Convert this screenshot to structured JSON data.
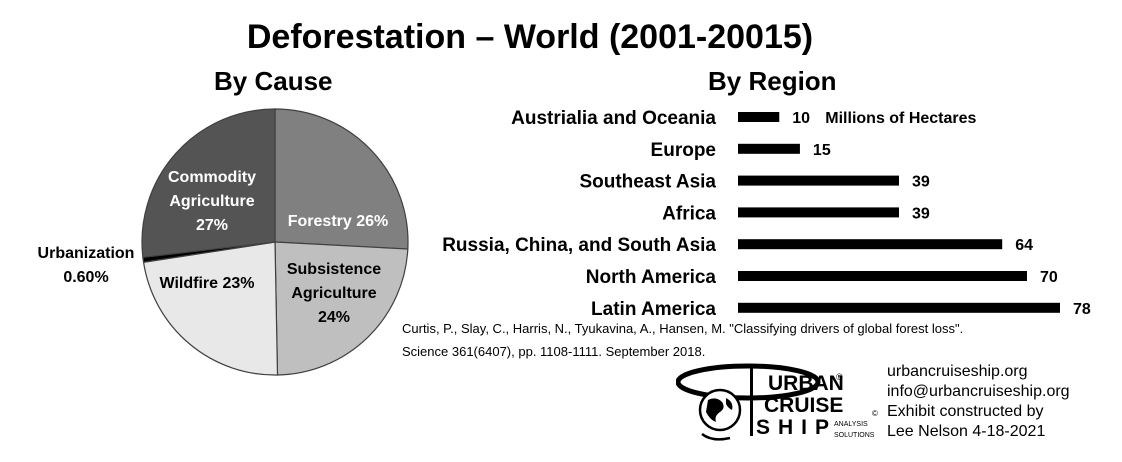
{
  "title": "Deforestation – World (2001-20015)",
  "chart_data": [
    {
      "type": "pie",
      "title": "By Cause",
      "slices": [
        {
          "name": "Forestry",
          "value": 26,
          "label": "Forestry 26%",
          "color": "#808080"
        },
        {
          "name": "Subsistence Agriculture",
          "value": 24,
          "label": "Subsistence|Agriculture|24%",
          "color": "#bfbfbf"
        },
        {
          "name": "Wildfire",
          "value": 23,
          "label": "Wildfire 23%",
          "color": "#e8e8e8"
        },
        {
          "name": "Urbanization",
          "value": 0.6,
          "label": "Urbanization|0.60%",
          "color": "#000000"
        },
        {
          "name": "Commodity Agriculture",
          "value": 27,
          "label": "Commodity|Agriculture|27%",
          "color": "#545454"
        }
      ]
    },
    {
      "type": "bar",
      "orientation": "horizontal",
      "title": "By Region",
      "unit_label": "Millions of Hectares",
      "categories": [
        "Austrialia and Oceania",
        "Europe",
        "Southeast Asia",
        "Africa",
        "Russia, China, and South Asia",
        "North America",
        "Latin America"
      ],
      "values": [
        10,
        15,
        39,
        39,
        64,
        70,
        78
      ],
      "bar_color": "#000000"
    }
  ],
  "citation": {
    "line1": "Curtis, P., Slay, C., Harris, N., Tyukavina, A., Hansen, M. \"Classifying drivers of global forest loss\".",
    "line2": "Science 361(6407), pp. 1108-1111. September 2018."
  },
  "logo": {
    "word1": "URBAN",
    "word2": "CRUISE",
    "word3": "SHIP",
    "tag1": "ANALYSIS",
    "tag2": "SOLUTIONS",
    "registered": "®",
    "copyright": "©"
  },
  "contact": {
    "website": "urbancruiseship.org",
    "email": "info@urbancruiseship.org",
    "credit1": "Exhibit constructed by",
    "credit2": "Lee Nelson 4-18-2021"
  }
}
